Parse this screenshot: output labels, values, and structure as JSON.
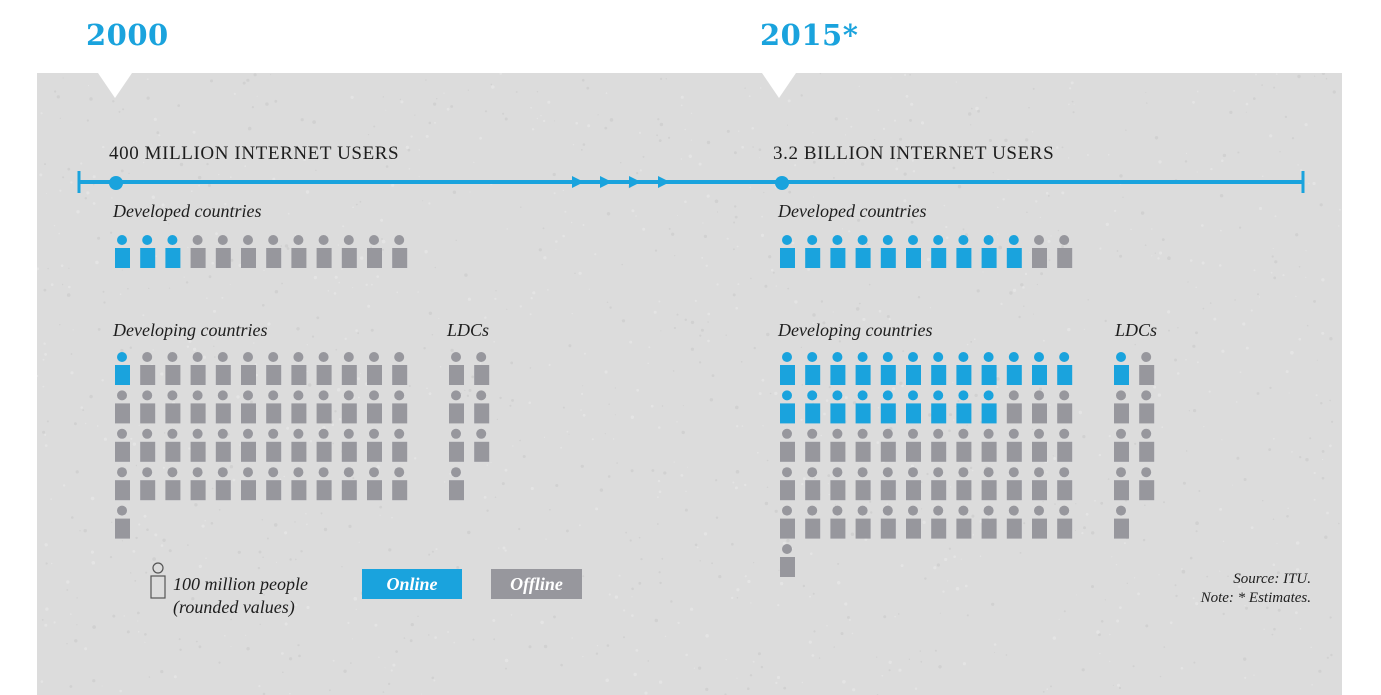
{
  "colors": {
    "accent": "#1aa3dd",
    "offline": "#97979d",
    "panel": "#dcdcdc"
  },
  "years": {
    "left": "2000",
    "right": "2015*"
  },
  "users": {
    "left": "400 MILLION INTERNET USERS",
    "right": "3.2 BILLION INTERNET USERS"
  },
  "groups": {
    "developed": "Developed countries",
    "developing": "Developing countries",
    "ldcs": "LDCs"
  },
  "legend": {
    "unit_line1": "100 million people",
    "unit_line2": "(rounded values)",
    "online": "Online",
    "offline": "Offline"
  },
  "source": {
    "line1": "Source: ITU.",
    "line2": "Note: * Estimates."
  },
  "chart_data": {
    "type": "pictogram",
    "unit": "100 million people",
    "panels": [
      {
        "year": "2000",
        "groups": [
          {
            "name": "Developed countries",
            "online": 3,
            "offline": 9
          },
          {
            "name": "Developing countries",
            "online": 1,
            "offline": 48
          },
          {
            "name": "LDCs",
            "online": 0,
            "offline": 7
          }
        ]
      },
      {
        "year": "2015*",
        "groups": [
          {
            "name": "Developed countries",
            "online": 10,
            "offline": 2
          },
          {
            "name": "Developing countries",
            "online": 21,
            "offline": 40
          },
          {
            "name": "LDCs",
            "online": 1,
            "offline": 8
          }
        ]
      }
    ]
  }
}
